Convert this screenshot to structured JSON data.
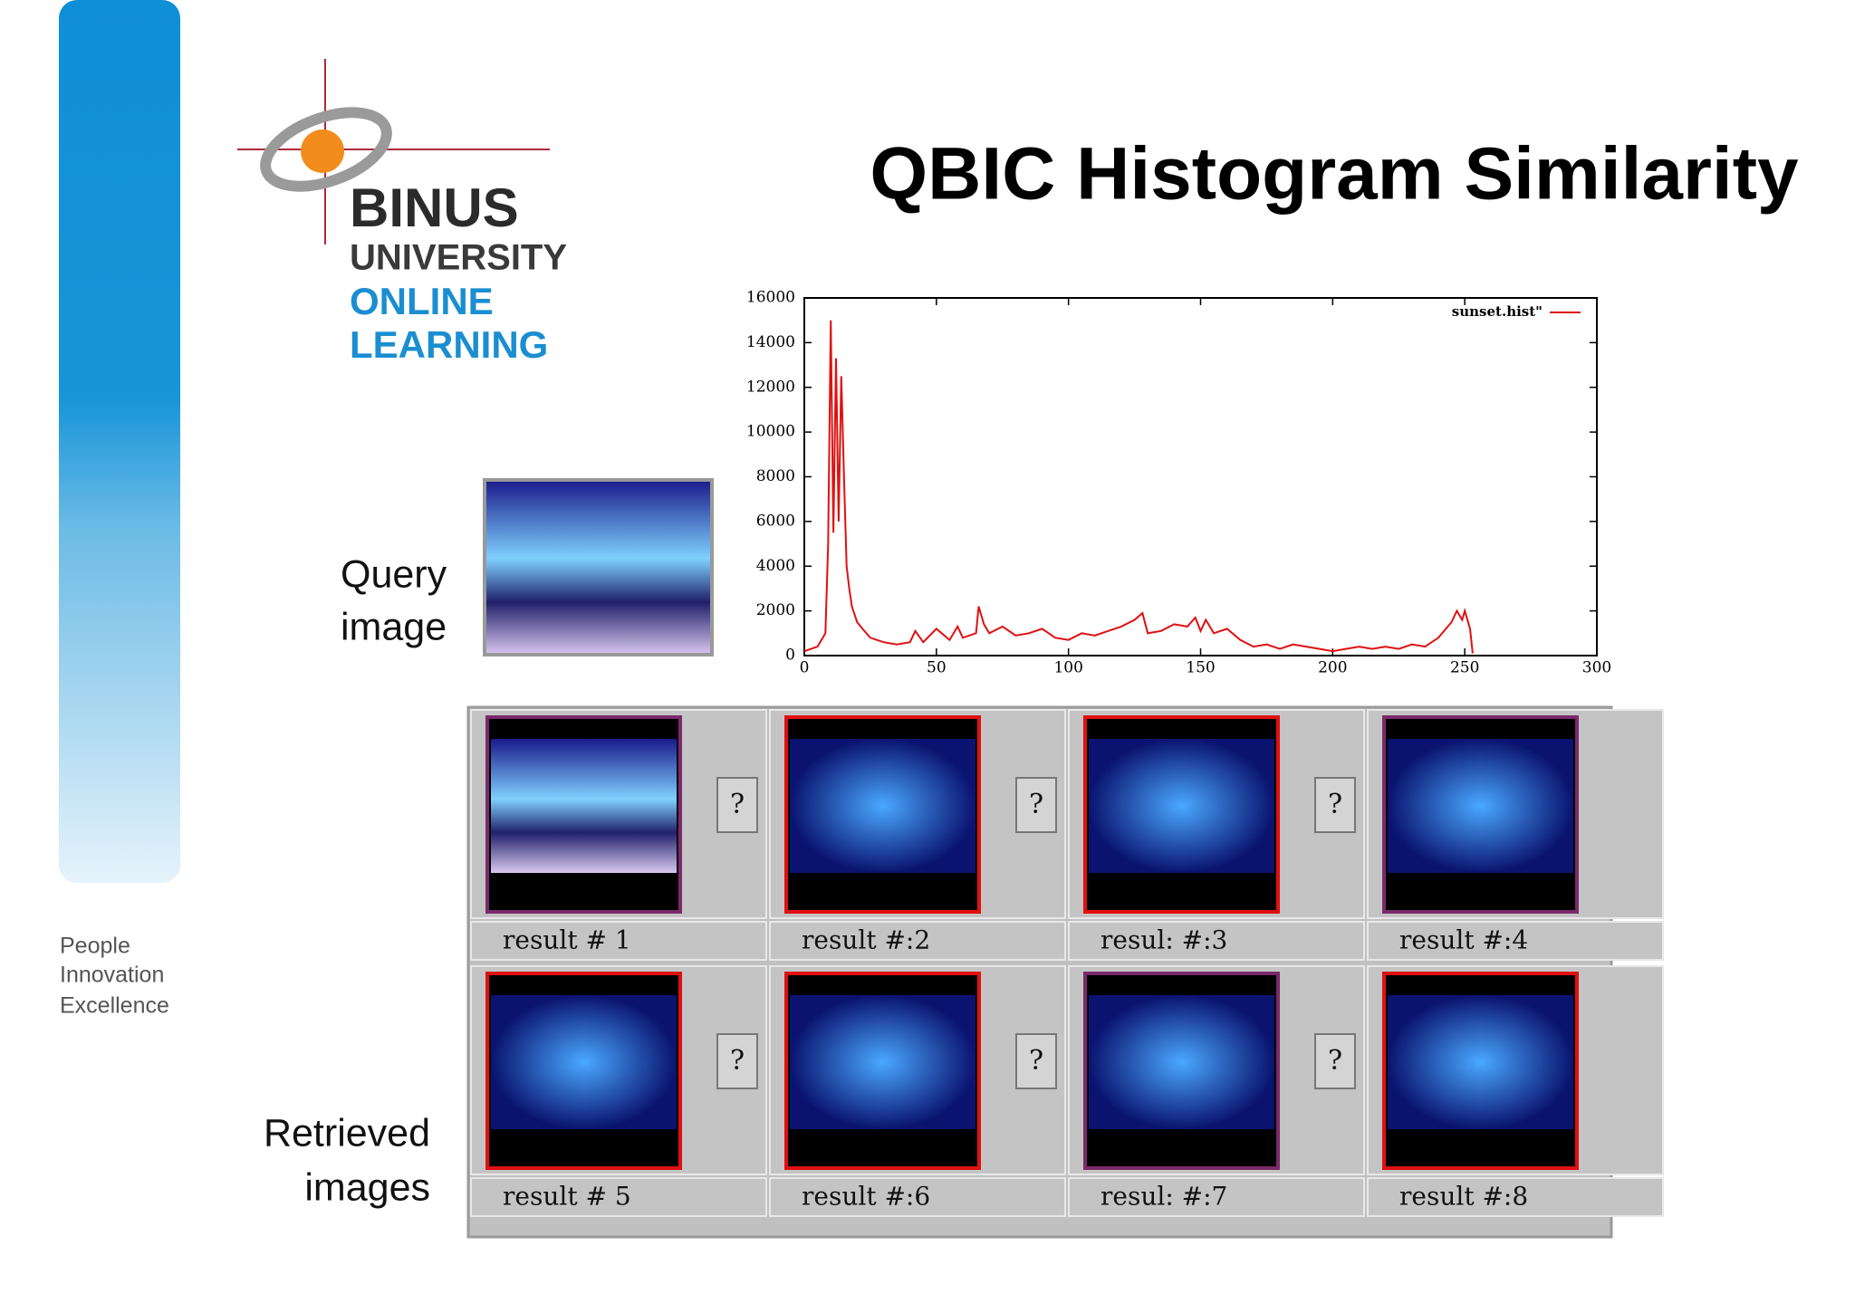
{
  "logo": {
    "lines": [
      "BINUS",
      "UNIVERSITY",
      "ONLINE",
      "LEARNING"
    ]
  },
  "tagline": [
    "People",
    "Innovation",
    "Excellence"
  ],
  "title": "QBIC Histogram Similarity",
  "query_label": [
    "Query",
    "image"
  ],
  "retrieved_label": [
    "Retrieved",
    "images"
  ],
  "results": {
    "labels": [
      "result # 1",
      "result #:2",
      "resul: #:3",
      "result #:4",
      "result # 5",
      "result #:6",
      "resul: #:7",
      "result #:8"
    ],
    "buttons": [
      "?",
      "?",
      "?",
      "?",
      "?",
      "?"
    ]
  },
  "chart_data": {
    "type": "line",
    "x": [
      0,
      5,
      8,
      9,
      10,
      11,
      12,
      13,
      14,
      15,
      16,
      17,
      18,
      20,
      22,
      25,
      30,
      35,
      40,
      42,
      45,
      50,
      52,
      55,
      58,
      60,
      65,
      66,
      68,
      70,
      75,
      80,
      85,
      90,
      95,
      100,
      105,
      110,
      115,
      120,
      125,
      128,
      130,
      135,
      140,
      145,
      148,
      150,
      152,
      155,
      160,
      165,
      170,
      175,
      180,
      185,
      190,
      195,
      200,
      205,
      210,
      215,
      220,
      225,
      230,
      235,
      240,
      245,
      247,
      249,
      250,
      252,
      253
    ],
    "series": [
      {
        "name": "sunset.hist\"",
        "color": "#e01010",
        "values": [
          200,
          400,
          1000,
          5000,
          15000,
          5500,
          13300,
          6000,
          12500,
          8000,
          4000,
          3000,
          2200,
          1500,
          1200,
          800,
          600,
          500,
          600,
          1100,
          600,
          1200,
          1000,
          700,
          1300,
          800,
          1000,
          2200,
          1400,
          1000,
          1300,
          900,
          1000,
          1200,
          800,
          700,
          1000,
          900,
          1100,
          1300,
          1600,
          1900,
          1000,
          1100,
          1400,
          1300,
          1700,
          1100,
          1600,
          1000,
          1200,
          700,
          400,
          500,
          300,
          500,
          400,
          300,
          200,
          300,
          400,
          300,
          400,
          300,
          500,
          400,
          800,
          1500,
          2000,
          1600,
          2000,
          1200,
          100
        ]
      }
    ],
    "xlim": [
      0,
      300
    ],
    "ylim": [
      0,
      16000
    ],
    "xticks": [
      0,
      50,
      100,
      150,
      200,
      250,
      300
    ],
    "yticks": [
      0,
      2000,
      4000,
      6000,
      8000,
      10000,
      12000,
      14000,
      16000
    ],
    "legend": "top-right"
  }
}
